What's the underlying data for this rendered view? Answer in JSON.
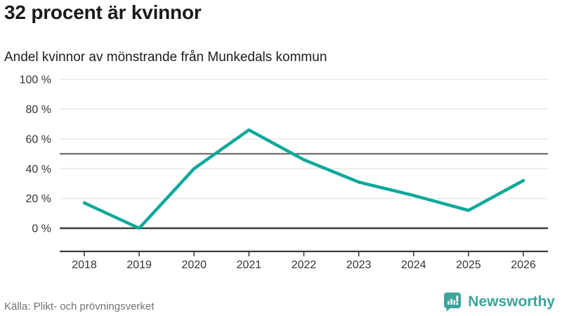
{
  "header": {
    "title": "32 procent är kvinnor",
    "subtitle": "Andel kvinnor av mönstrande från Munkedals kommun"
  },
  "footer": {
    "source": "Källa: Plikt- och prövningsverket",
    "brand_name": "Newsworthy"
  },
  "colors": {
    "line": "#0da89b",
    "grid": "#e6e6e6",
    "reference": "#707070",
    "axis": "#3d3d3d",
    "tick_text": "#333333",
    "brand": "#3ba59d"
  },
  "chart_data": {
    "type": "line",
    "title": "32 procent är kvinnor",
    "subtitle": "Andel kvinnor av mönstrande från Munkedals kommun",
    "x": [
      2018,
      2019,
      2020,
      2021,
      2022,
      2023,
      2024,
      2025,
      2026
    ],
    "series": [
      {
        "name": "Andel kvinnor av mönstrande",
        "values": [
          17,
          0,
          40,
          66,
          46,
          31,
          22,
          12,
          32
        ]
      }
    ],
    "unit": "%",
    "ylim": [
      0,
      100
    ],
    "yticks": [
      0,
      20,
      40,
      60,
      80,
      100
    ],
    "ytick_suffix": " %",
    "reference_line": 50,
    "grid": true,
    "legend": false,
    "source": "Källa: Plikt- och prövningsverket"
  }
}
